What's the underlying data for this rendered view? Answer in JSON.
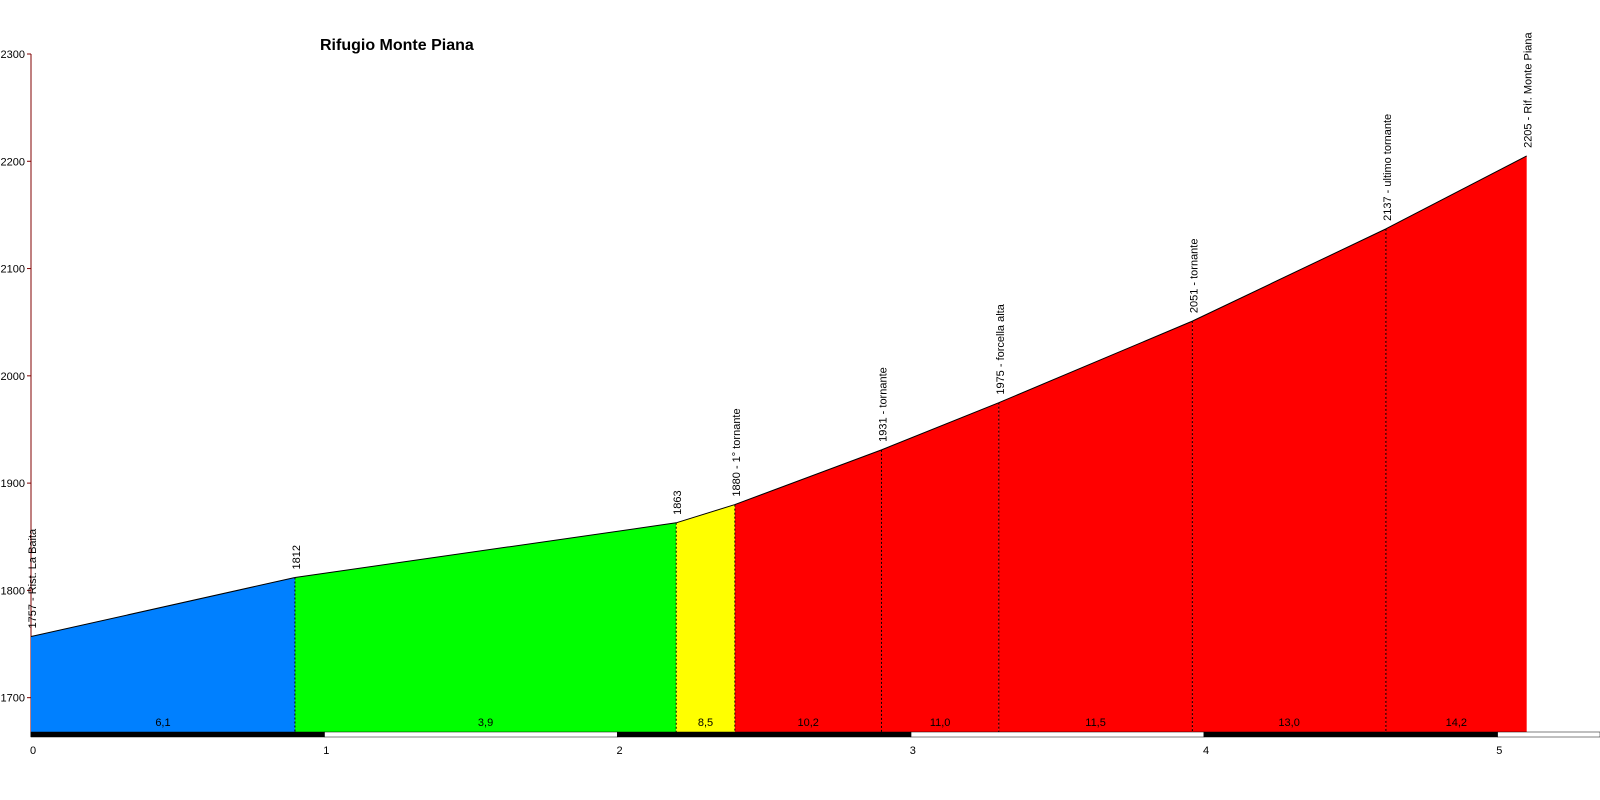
{
  "chart_data": {
    "type": "profile",
    "title": "Rifugio Monte Piana",
    "x": [
      0,
      0.9,
      2.2,
      2.4,
      2.9,
      3.3,
      3.96,
      4.62,
      5.1
    ],
    "values": [
      1757,
      1812,
      1863,
      1880,
      1931,
      1975,
      2051,
      2137,
      2205
    ],
    "point_labels": [
      "1757 - Rist. La Baita",
      "1812",
      "1863",
      "1880 - 1° tornante",
      "1931 - tornante",
      "1975 - forcella alta",
      "2051 - tornante",
      "2137 - ultimo tornante",
      "2205 - Rif. Monte Piana"
    ],
    "gradients": [
      6.1,
      3.9,
      8.5,
      10.2,
      11.0,
      11.5,
      13.0,
      14.2
    ],
    "gradient_labels": [
      "6,1",
      "3,9",
      "8,5",
      "10,2",
      "11,0",
      "11,5",
      "13,0",
      "14,2"
    ],
    "colors": [
      "#0080ff",
      "#00ff00",
      "#ffff00",
      "#ff0000",
      "#ff0000",
      "#ff0000",
      "#ff0000",
      "#ff0000"
    ],
    "xlim": [
      0,
      5.35
    ],
    "xticks": [
      0,
      1,
      2,
      3,
      4,
      5
    ],
    "ylim": [
      1668,
      2300
    ],
    "yticks": [
      1700,
      1800,
      1900,
      2000,
      2100,
      2200,
      2300
    ]
  }
}
